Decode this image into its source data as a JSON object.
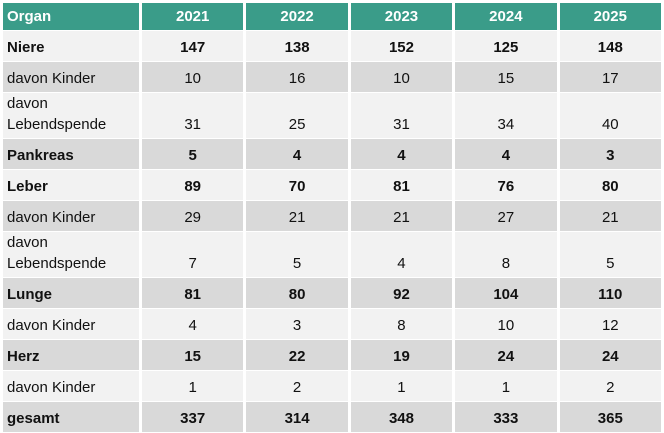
{
  "table": {
    "header": [
      "Organ",
      "2021",
      "2022",
      "2023",
      "2024",
      "2025"
    ],
    "rows": [
      [
        "Niere",
        147,
        138,
        152,
        125,
        148
      ],
      [
        "davon Kinder",
        10,
        16,
        10,
        15,
        17
      ],
      [
        "davon Lebendspende",
        31,
        25,
        31,
        34,
        40
      ],
      [
        "Pankreas",
        5,
        4,
        4,
        4,
        3
      ],
      [
        "Leber",
        89,
        70,
        81,
        76,
        80
      ],
      [
        "davon Kinder",
        29,
        21,
        21,
        27,
        21
      ],
      [
        "davon Lebendspende",
        7,
        5,
        4,
        8,
        5
      ],
      [
        "Lunge",
        81,
        80,
        92,
        104,
        110
      ],
      [
        "davon Kinder",
        4,
        3,
        8,
        10,
        12
      ],
      [
        "Herz",
        15,
        22,
        19,
        24,
        24
      ],
      [
        "davon Kinder",
        1,
        2,
        1,
        1,
        2
      ],
      [
        "gesamt",
        337,
        314,
        348,
        333,
        365
      ]
    ]
  }
}
